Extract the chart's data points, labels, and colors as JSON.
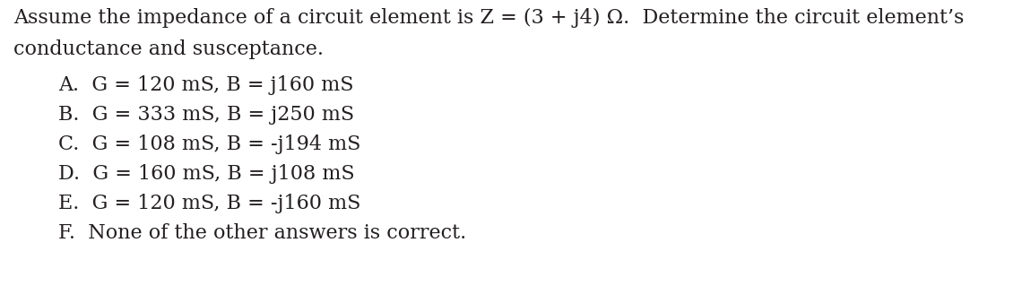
{
  "title_line1": "Assume the impedance of a circuit element is Z = (3 + j4) Ω.  Determine the circuit element’s",
  "title_line2": "conductance and susceptance.",
  "options": [
    "A.  G = 120 mS, B = j160 mS",
    "B.  G = 333 mS, B = j250 mS",
    "C.  G = 108 mS, B = -j194 mS",
    "D.  G = 160 mS, B = j108 mS",
    "E.  G = 120 mS, B = -j160 mS",
    "F.  None of the other answers is correct."
  ],
  "bg_color": "#ffffff",
  "text_color": "#231f20",
  "title_fontsize": 16,
  "option_fontsize": 16,
  "font_family": "serif"
}
